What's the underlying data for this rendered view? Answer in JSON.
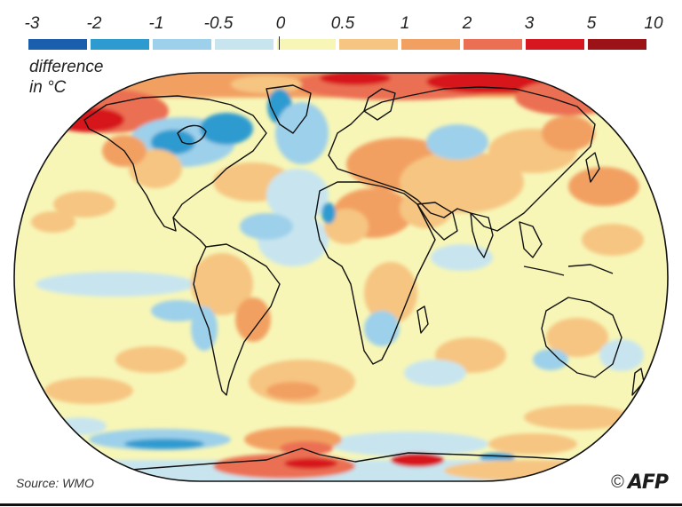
{
  "legend": {
    "ticks": [
      "-3",
      "-2",
      "-1",
      "-0.5",
      "0",
      "0.5",
      "1",
      "2",
      "3",
      "5",
      "10"
    ],
    "colors": [
      "#1a5fad",
      "#2e9bd0",
      "#9dd0ea",
      "#c8e5ef",
      "#f7f6b7",
      "#f6c581",
      "#f2a062",
      "#eb6f52",
      "#d7171f",
      "#9b1317"
    ],
    "unit_line1": "difference",
    "unit_line2": "in °C"
  },
  "map": {
    "ocean_base_color": "#f7f6b7",
    "coastline_color": "#111111"
  },
  "footer": {
    "source": "Source: WMO",
    "copyright_symbol": "©",
    "agency": "AFP"
  }
}
